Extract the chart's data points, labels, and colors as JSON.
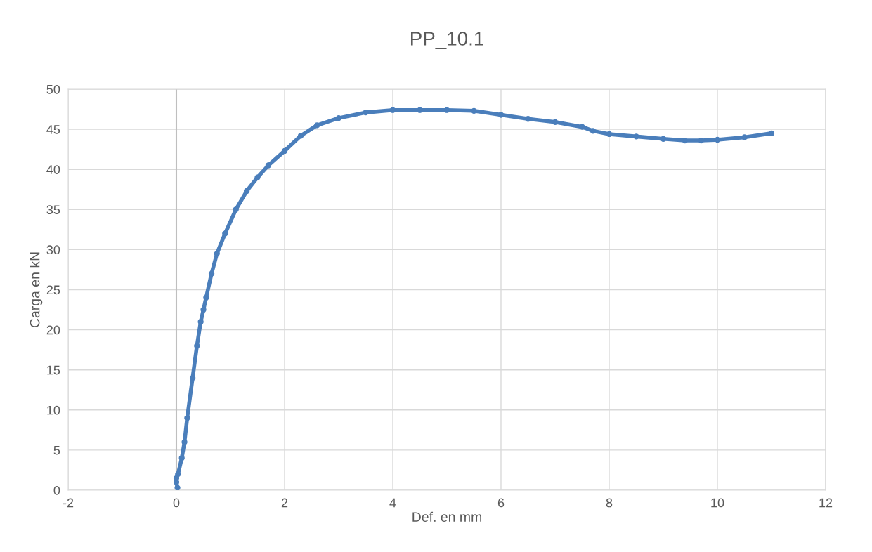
{
  "chart_data": {
    "type": "line",
    "title": "PP_10.1",
    "xlabel": "Def. en mm",
    "ylabel": "Carga en kN",
    "marker": "circle",
    "grid": true,
    "legend": false,
    "xlim": [
      -2,
      12
    ],
    "xticks": [
      -2,
      0,
      2,
      4,
      6,
      8,
      10,
      12
    ],
    "ylim": [
      0,
      50
    ],
    "yticks": [
      0,
      5,
      10,
      15,
      20,
      25,
      30,
      35,
      40,
      45,
      50
    ],
    "ref_lines": [
      {
        "axis": "x",
        "value": 0,
        "color": "#bfbfbf"
      }
    ],
    "series": [
      {
        "color": "#4a7ebb",
        "x": [
          0.02,
          0.0,
          0.0,
          0.03,
          0.1,
          0.15,
          0.2,
          0.3,
          0.38,
          0.45,
          0.5,
          0.55,
          0.65,
          0.75,
          0.9,
          1.1,
          1.3,
          1.5,
          1.7,
          2.0,
          2.3,
          2.6,
          3.0,
          3.5,
          4.0,
          4.5,
          5.0,
          5.5,
          6.0,
          6.5,
          7.0,
          7.5,
          7.7,
          8.0,
          8.5,
          9.0,
          9.4,
          9.7,
          10.0,
          10.5,
          11.0
        ],
        "values": [
          0.3,
          1.0,
          1.5,
          2,
          4,
          6,
          9,
          14,
          18,
          21,
          22.5,
          24,
          27,
          29.5,
          32,
          35,
          37.3,
          39,
          40.5,
          42.3,
          44.2,
          45.5,
          46.4,
          47.1,
          47.4,
          47.4,
          47.4,
          47.3,
          46.8,
          46.3,
          45.9,
          45.3,
          44.8,
          44.4,
          44.1,
          43.8,
          43.6,
          43.6,
          43.7,
          44.0,
          44.5
        ]
      }
    ]
  }
}
